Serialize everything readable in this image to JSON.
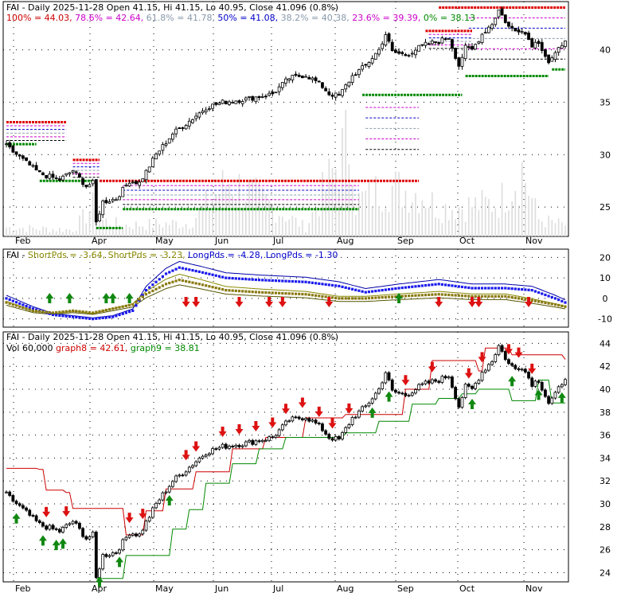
{
  "chart_data": [
    {
      "type": "candlestick",
      "title_parts": [
        {
          "text": "FAI - Daily 2025-11-28 Open 41.15, Hi 41.15, Lo 40.95, Close 41.096 (0.8%)",
          "color": "#000000"
        }
      ],
      "fib_parts": [
        {
          "text": "100% = 44.03,",
          "color": "#cc0000"
        },
        {
          "text": "78.6% = 42.64,",
          "color": "#cc00cc"
        },
        {
          "text": "61.8% = 41.78,",
          "color": "#8899aa"
        },
        {
          "text": "50% = 41.08,",
          "color": "#0000cc"
        },
        {
          "text": "38.2% = 40.38,",
          "color": "#8899aa"
        },
        {
          "text": "23.6% = 39.39,",
          "color": "#cc00cc"
        },
        {
          "text": "0% = 38.13",
          "color": "#008800"
        }
      ],
      "months": [
        "Feb",
        "Apr",
        "May",
        "Jun",
        "Jul",
        "Aug",
        "Sep",
        "Oct",
        "Nov"
      ],
      "yticks": [
        25,
        30,
        35,
        40
      ],
      "ylim": [
        22.2,
        44.6
      ],
      "close_anchors": [
        [
          0,
          30.8
        ],
        [
          10,
          28.2
        ],
        [
          16,
          27.6
        ],
        [
          20,
          28.5
        ],
        [
          24,
          27.0
        ],
        [
          26,
          27.3
        ],
        [
          27,
          23.5
        ],
        [
          29,
          25.5
        ],
        [
          33,
          25.8
        ],
        [
          37,
          27.5
        ],
        [
          40,
          27.3
        ],
        [
          45,
          30.0
        ],
        [
          50,
          32.0
        ],
        [
          55,
          33.2
        ],
        [
          60,
          34.5
        ],
        [
          65,
          35.0
        ],
        [
          72,
          35.3
        ],
        [
          80,
          35.8
        ],
        [
          85,
          37.3
        ],
        [
          90,
          37.6
        ],
        [
          93,
          37.0
        ],
        [
          95,
          36.5
        ],
        [
          97,
          35.8
        ],
        [
          100,
          35.6
        ],
        [
          104,
          37.5
        ],
        [
          108,
          38.5
        ],
        [
          112,
          40.0
        ],
        [
          114,
          41.5
        ],
        [
          116,
          39.8
        ],
        [
          120,
          39.5
        ],
        [
          124,
          40.2
        ],
        [
          126,
          40.5
        ],
        [
          130,
          40.8
        ],
        [
          133,
          41.2
        ],
        [
          136,
          38.5
        ],
        [
          138,
          40.2
        ],
        [
          140,
          40.0
        ],
        [
          143,
          41.5
        ],
        [
          146,
          42.5
        ],
        [
          148,
          43.8
        ],
        [
          151,
          42.2
        ],
        [
          153,
          41.8
        ],
        [
          155,
          42.0
        ],
        [
          158,
          40.5
        ],
        [
          160,
          40.8
        ],
        [
          163,
          38.8
        ],
        [
          165,
          39.5
        ],
        [
          168,
          41.1
        ]
      ],
      "volume_anchors": [
        [
          0,
          0.08
        ],
        [
          20,
          0.06
        ],
        [
          27,
          0.3
        ],
        [
          28,
          0.15
        ],
        [
          35,
          0.1
        ],
        [
          55,
          0.12
        ],
        [
          67,
          0.5
        ],
        [
          90,
          0.08
        ],
        [
          104,
          0.92
        ],
        [
          105,
          0.3
        ],
        [
          114,
          0.45
        ],
        [
          125,
          0.38
        ],
        [
          130,
          0.25
        ],
        [
          148,
          0.3
        ],
        [
          155,
          0.6
        ],
        [
          160,
          0.15
        ],
        [
          168,
          0.1
        ]
      ],
      "resistance_levels": [
        {
          "label": "red-upper-left",
          "y": 33.1,
          "from": 0,
          "to": 18,
          "color": "#dd0000"
        },
        {
          "label": "red-apr-may",
          "y": 27.5,
          "from": 28,
          "to": 124,
          "color": "#dd0000"
        },
        {
          "label": "red-mar",
          "y": 29.5,
          "from": 20,
          "to": 28,
          "color": "#dd0000"
        },
        {
          "label": "red-oct-nov",
          "y": 44.03,
          "from": 130,
          "to": 168,
          "color": "#dd0000"
        },
        {
          "label": "red-sep",
          "y": 41.8,
          "from": 126,
          "to": 140,
          "color": "#dd0000"
        }
      ],
      "support_levels": [
        {
          "label": "green-left",
          "y": 31.0,
          "from": 0,
          "to": 9,
          "color": "#008800"
        },
        {
          "label": "green-mar",
          "y": 27.5,
          "from": 10,
          "to": 26,
          "color": "#008800"
        },
        {
          "label": "green-apr",
          "y": 23.0,
          "from": 27,
          "to": 35,
          "color": "#008800"
        },
        {
          "label": "green-may-aug",
          "y": 24.8,
          "from": 35,
          "to": 106,
          "color": "#008800"
        },
        {
          "label": "green-aug-sep",
          "y": 35.7,
          "from": 107,
          "to": 137,
          "color": "#008800"
        },
        {
          "label": "green-oct-nov",
          "y": 37.5,
          "from": 138,
          "to": 163,
          "color": "#008800"
        },
        {
          "label": "green-nov",
          "y": 38.13,
          "from": 164,
          "to": 168,
          "color": "#008800"
        }
      ]
    },
    {
      "type": "line",
      "title_parts": [
        {
          "text": "FAI -",
          "color": "#000000"
        },
        {
          "text": "ShortPds = -3.64,",
          "color": "#888800"
        },
        {
          "text": "ShortPds = -3.23,",
          "color": "#888800"
        },
        {
          "text": "LongPds = -4.28,",
          "color": "#0000cc"
        },
        {
          "text": "LongPds = -1.30",
          "color": "#0000cc"
        }
      ],
      "yticks": [
        20,
        10,
        0,
        -10
      ],
      "ylim": [
        -14,
        24
      ],
      "long_anchors": [
        [
          0,
          0
        ],
        [
          8,
          -5
        ],
        [
          14,
          -8
        ],
        [
          20,
          -9
        ],
        [
          26,
          -10
        ],
        [
          32,
          -9
        ],
        [
          38,
          -6
        ],
        [
          42,
          4
        ],
        [
          48,
          12
        ],
        [
          52,
          15
        ],
        [
          58,
          13
        ],
        [
          66,
          10
        ],
        [
          76,
          9
        ],
        [
          90,
          8
        ],
        [
          100,
          6
        ],
        [
          108,
          3
        ],
        [
          118,
          5
        ],
        [
          130,
          7
        ],
        [
          140,
          5
        ],
        [
          150,
          5
        ],
        [
          158,
          4
        ],
        [
          165,
          0
        ],
        [
          168,
          -2
        ]
      ],
      "short_anchors": [
        [
          0,
          -2
        ],
        [
          8,
          -6
        ],
        [
          14,
          -7
        ],
        [
          20,
          -6
        ],
        [
          26,
          -7
        ],
        [
          32,
          -5
        ],
        [
          38,
          -3
        ],
        [
          42,
          2
        ],
        [
          48,
          7
        ],
        [
          52,
          9
        ],
        [
          58,
          7
        ],
        [
          66,
          4
        ],
        [
          76,
          3
        ],
        [
          90,
          2
        ],
        [
          100,
          0
        ],
        [
          108,
          0
        ],
        [
          118,
          1
        ],
        [
          130,
          2
        ],
        [
          140,
          1
        ],
        [
          150,
          1
        ],
        [
          158,
          -1
        ],
        [
          165,
          -3
        ],
        [
          168,
          -4
        ]
      ],
      "down_arrows_x": [
        54,
        57,
        70,
        79,
        83,
        97,
        130,
        140,
        142,
        157
      ],
      "up_arrows_x": [
        13,
        19,
        30,
        32,
        37,
        118
      ]
    },
    {
      "type": "candlestick",
      "title_parts": [
        {
          "text": "FAI - Daily 2025-11-28 Open 41.15, Hi 41.15, Lo 40.95, Close 41.096 (0.8%)",
          "color": "#000000"
        }
      ],
      "subtitle_parts": [
        {
          "text": "Vol 60,000",
          "color": "#000000"
        },
        {
          "text": "graph8 = 42.61,",
          "color": "#cc0000"
        },
        {
          "text": "graph9 = 38.81",
          "color": "#008800"
        }
      ],
      "yticks": [
        24,
        26,
        28,
        30,
        32,
        34,
        36,
        38,
        40,
        42,
        44
      ],
      "ylim": [
        23.2,
        45.0
      ],
      "red_stop_anchors": [
        [
          0,
          33.1
        ],
        [
          10,
          33.0
        ],
        [
          12,
          31.2
        ],
        [
          18,
          31.0
        ],
        [
          20,
          29.6
        ],
        [
          33,
          29.6
        ],
        [
          36,
          27.3
        ],
        [
          40,
          27.3
        ],
        [
          42,
          29.4
        ],
        [
          46,
          29.4
        ],
        [
          48,
          31.3
        ],
        [
          55,
          31.3
        ],
        [
          57,
          32.8
        ],
        [
          66,
          32.8
        ],
        [
          68,
          34.8
        ],
        [
          76,
          34.8
        ],
        [
          78,
          35.8
        ],
        [
          88,
          35.8
        ],
        [
          90,
          37.5
        ],
        [
          100,
          37.5
        ],
        [
          102,
          37.8
        ],
        [
          118,
          37.8
        ],
        [
          120,
          40.0
        ],
        [
          127,
          40.0
        ],
        [
          128,
          42.5
        ],
        [
          140,
          42.5
        ],
        [
          142,
          41.6
        ],
        [
          144,
          43.6
        ],
        [
          150,
          43.6
        ],
        [
          152,
          43.0
        ],
        [
          167,
          43.0
        ],
        [
          168,
          42.6
        ]
      ],
      "green_stop_anchors": [
        [
          27,
          23.5
        ],
        [
          35,
          23.5
        ],
        [
          36,
          25.5
        ],
        [
          48,
          25.5
        ],
        [
          50,
          27.8
        ],
        [
          54,
          27.8
        ],
        [
          55,
          29.5
        ],
        [
          58,
          29.5
        ],
        [
          60,
          31.8
        ],
        [
          66,
          31.8
        ],
        [
          68,
          33.5
        ],
        [
          74,
          33.5
        ],
        [
          76,
          34.8
        ],
        [
          82,
          34.8
        ],
        [
          84,
          35.8
        ],
        [
          100,
          35.8
        ],
        [
          102,
          36.2
        ],
        [
          110,
          36.2
        ],
        [
          112,
          37.2
        ],
        [
          120,
          37.2
        ],
        [
          122,
          38.7
        ],
        [
          128,
          38.7
        ],
        [
          130,
          39.2
        ],
        [
          135,
          39.2
        ],
        [
          137,
          39.6
        ],
        [
          141,
          39.6
        ],
        [
          142,
          40.0
        ],
        [
          150,
          40.0
        ],
        [
          152,
          39.0
        ],
        [
          158,
          39.0
        ],
        [
          160,
          40.8
        ],
        [
          164,
          38.8
        ],
        [
          168,
          38.8
        ]
      ],
      "down_arrows_x": [
        12,
        18,
        37,
        41,
        54,
        57,
        65,
        70,
        75,
        80,
        84,
        89,
        94,
        98,
        103,
        120,
        128,
        139,
        143,
        151,
        154,
        158
      ],
      "up_arrows_x": [
        3,
        11,
        15,
        17,
        28,
        34,
        49,
        110,
        115,
        140,
        152,
        160,
        167
      ]
    }
  ]
}
